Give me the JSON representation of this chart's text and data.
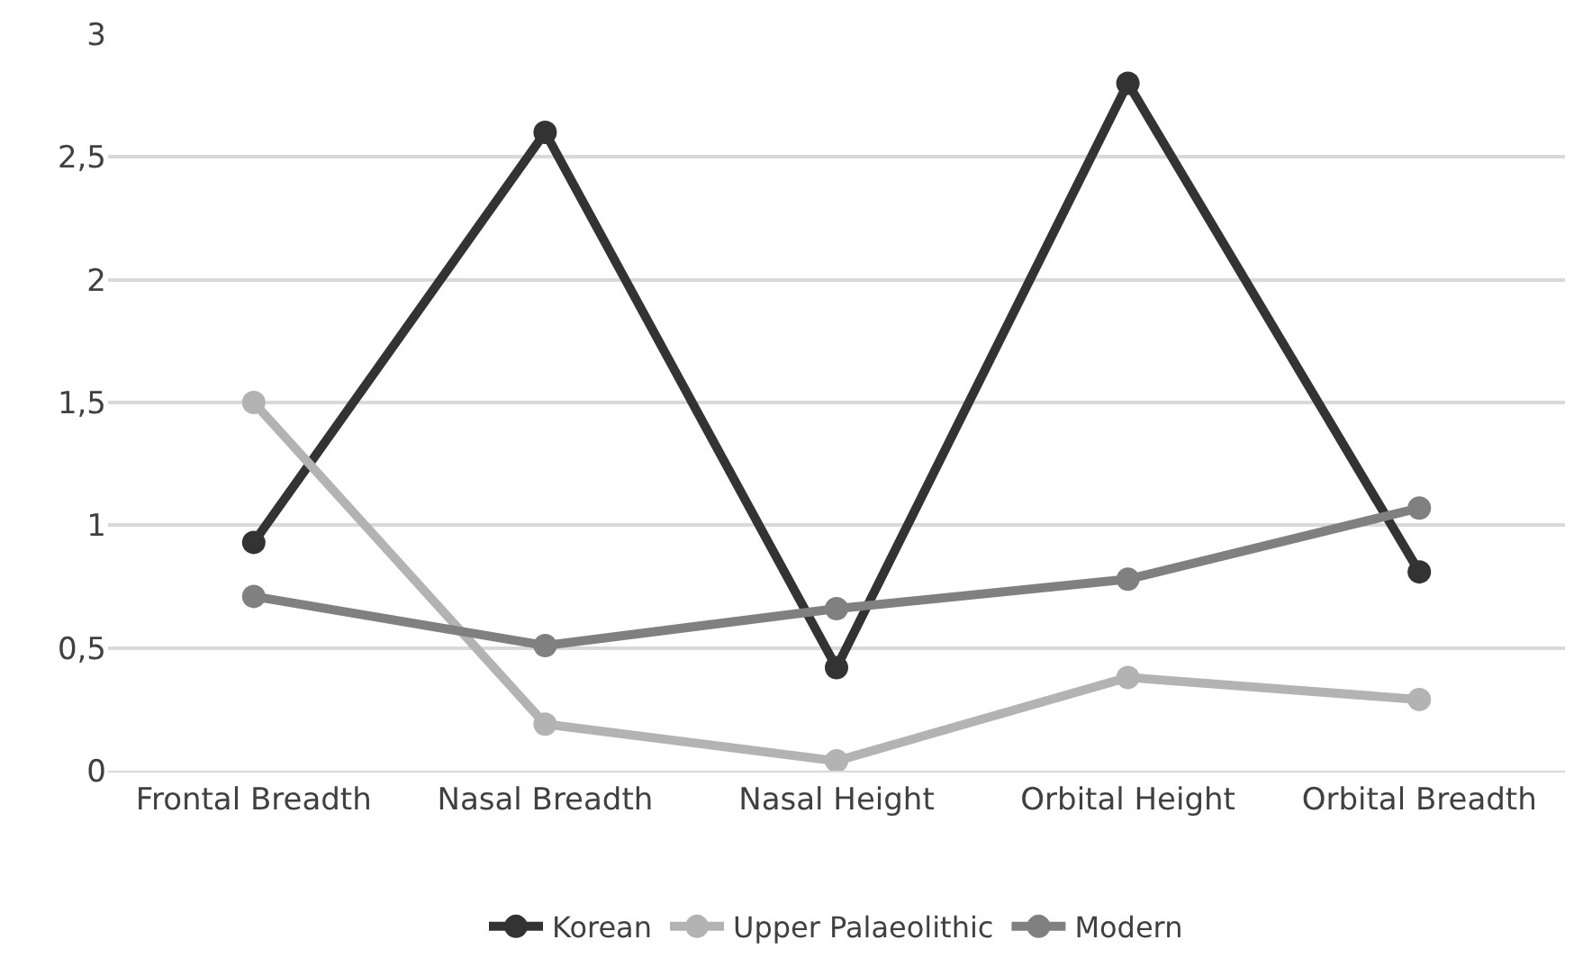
{
  "chart_data": {
    "type": "line",
    "categories": [
      "Frontal Breadth",
      "Nasal Breadth",
      "Nasal Height",
      "Orbital Height",
      "Orbital Breadth"
    ],
    "series": [
      {
        "name": "Korean",
        "color": "#333333",
        "values": [
          0.93,
          2.6,
          0.42,
          2.8,
          0.81
        ]
      },
      {
        "name": "Upper Palaeolithic",
        "color": "#b3b3b3",
        "values": [
          1.5,
          0.19,
          0.04,
          0.38,
          0.29
        ]
      },
      {
        "name": "Modern",
        "color": "#808080",
        "values": [
          0.71,
          0.51,
          0.66,
          0.78,
          1.07
        ]
      }
    ],
    "ylim": [
      0,
      3
    ],
    "yticks": [
      0,
      {
        "value": 0.5,
        "label": "0,5"
      },
      1,
      {
        "value": 1.5,
        "label": "1,5"
      },
      2,
      {
        "value": 2.5,
        "label": "2,5"
      },
      3
    ],
    "grid": "y",
    "legend": "bottom",
    "marker": "circle",
    "line_style": "solid"
  }
}
